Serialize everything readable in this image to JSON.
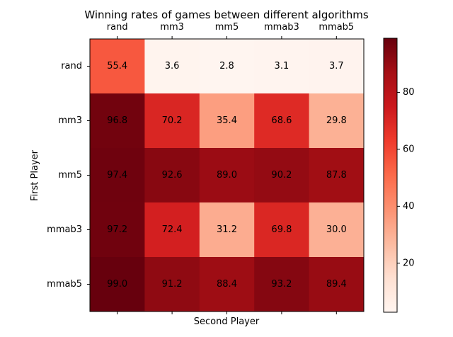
{
  "chart_data": {
    "type": "heatmap",
    "title": "Winning rates of games between different algorithms",
    "xlabel": "Second Player",
    "ylabel": "First Player",
    "x_categories": [
      "rand",
      "mm3",
      "mm5",
      "mmab3",
      "mmab5"
    ],
    "y_categories": [
      "rand",
      "mm3",
      "mm5",
      "mmab3",
      "mmab5"
    ],
    "values": [
      [
        55.4,
        3.6,
        2.8,
        3.1,
        3.7
      ],
      [
        96.8,
        70.2,
        35.4,
        68.6,
        29.8
      ],
      [
        97.4,
        92.6,
        89.0,
        90.2,
        87.8
      ],
      [
        97.2,
        72.4,
        31.2,
        69.8,
        30.0
      ],
      [
        99.0,
        91.2,
        88.4,
        93.2,
        89.4
      ]
    ],
    "value_labels": [
      [
        "55.4",
        "3.6",
        "2.8",
        "3.1",
        "3.7"
      ],
      [
        "96.8",
        "70.2",
        "35.4",
        "68.6",
        "29.8"
      ],
      [
        "97.4",
        "92.6",
        "89.0",
        "90.2",
        "87.8"
      ],
      [
        "97.2",
        "72.4",
        "31.2",
        "69.8",
        "30.0"
      ],
      [
        "99.0",
        "91.2",
        "88.4",
        "93.2",
        "89.4"
      ]
    ],
    "colormap": "Reds",
    "color_range": [
      2.8,
      99.0
    ],
    "colorbar_ticks": [
      20,
      40,
      60,
      80
    ],
    "colorbar_tick_labels": [
      "20",
      "40",
      "60",
      "80"
    ],
    "x_ticks_position": "top",
    "grid": false
  }
}
